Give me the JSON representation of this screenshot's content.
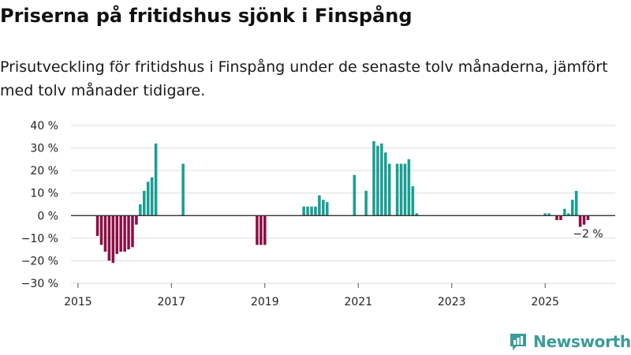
{
  "header": {
    "title": "Priserna på fritidshus sjönk i Finspång",
    "subtitle": "Prisutveckling för fritidshus i Finspång under de senaste tolv månaderna, jämfört med tolv månader tidigare."
  },
  "brand": {
    "name": "Newsworthy"
  },
  "colors": {
    "positive": "#1a9e93",
    "negative": "#8c0f45",
    "grid": "#dddddd",
    "zero": "#333333",
    "brand": "#3a9c98"
  },
  "chart_data": {
    "type": "bar",
    "title": "Priserna på fritidshus sjönk i Finspång",
    "xlabel": "",
    "ylabel": "",
    "ylim": [
      -30,
      40
    ],
    "xlim": [
      2014.85,
      2026.5
    ],
    "yticks": [
      -30,
      -20,
      -10,
      0,
      10,
      20,
      30,
      40
    ],
    "ytick_labels": [
      "−30 %",
      "−20 %",
      "−10 %",
      "0 %",
      "10 %",
      "20 %",
      "30 %",
      "40 %"
    ],
    "xticks": [
      2015,
      2017,
      2019,
      2021,
      2023,
      2025
    ],
    "xtick_labels": [
      "2015",
      "2017",
      "2019",
      "2021",
      "2023",
      "2025"
    ],
    "unit": "percent change vs twelve months earlier",
    "points": [
      {
        "date": "2015-06",
        "value": -9
      },
      {
        "date": "2015-07",
        "value": -13
      },
      {
        "date": "2015-08",
        "value": -16
      },
      {
        "date": "2015-09",
        "value": -20
      },
      {
        "date": "2015-10",
        "value": -21
      },
      {
        "date": "2015-11",
        "value": -17
      },
      {
        "date": "2015-12",
        "value": -16
      },
      {
        "date": "2016-01",
        "value": -16
      },
      {
        "date": "2016-02",
        "value": -15
      },
      {
        "date": "2016-03",
        "value": -14
      },
      {
        "date": "2016-04",
        "value": -4
      },
      {
        "date": "2016-05",
        "value": 5
      },
      {
        "date": "2016-06",
        "value": 11
      },
      {
        "date": "2016-07",
        "value": 15
      },
      {
        "date": "2016-08",
        "value": 17
      },
      {
        "date": "2016-09",
        "value": 32
      },
      {
        "date": "2017-04",
        "value": 23
      },
      {
        "date": "2018-11",
        "value": -13
      },
      {
        "date": "2018-12",
        "value": -13
      },
      {
        "date": "2019-01",
        "value": -13
      },
      {
        "date": "2019-11",
        "value": 4
      },
      {
        "date": "2019-12",
        "value": 4
      },
      {
        "date": "2020-01",
        "value": 4
      },
      {
        "date": "2020-02",
        "value": 4
      },
      {
        "date": "2020-03",
        "value": 9
      },
      {
        "date": "2020-04",
        "value": 7
      },
      {
        "date": "2020-05",
        "value": 6
      },
      {
        "date": "2020-12",
        "value": 18
      },
      {
        "date": "2021-03",
        "value": 11
      },
      {
        "date": "2021-05",
        "value": 33
      },
      {
        "date": "2021-06",
        "value": 31
      },
      {
        "date": "2021-07",
        "value": 32
      },
      {
        "date": "2021-08",
        "value": 28
      },
      {
        "date": "2021-09",
        "value": 23
      },
      {
        "date": "2021-11",
        "value": 23
      },
      {
        "date": "2021-12",
        "value": 23
      },
      {
        "date": "2022-01",
        "value": 23
      },
      {
        "date": "2022-02",
        "value": 25
      },
      {
        "date": "2022-03",
        "value": 13
      },
      {
        "date": "2022-04",
        "value": 1
      },
      {
        "date": "2025-01",
        "value": 1
      },
      {
        "date": "2025-02",
        "value": 1
      },
      {
        "date": "2025-04",
        "value": -2
      },
      {
        "date": "2025-05",
        "value": -2
      },
      {
        "date": "2025-06",
        "value": 3
      },
      {
        "date": "2025-07",
        "value": 1
      },
      {
        "date": "2025-08",
        "value": 7
      },
      {
        "date": "2025-09",
        "value": 11
      },
      {
        "date": "2025-10",
        "value": -5
      },
      {
        "date": "2025-11",
        "value": -4
      },
      {
        "date": "2025-12",
        "value": -2
      }
    ],
    "annotations": [
      {
        "date": "2025-12",
        "value": -2,
        "label": "−2 %"
      }
    ]
  }
}
